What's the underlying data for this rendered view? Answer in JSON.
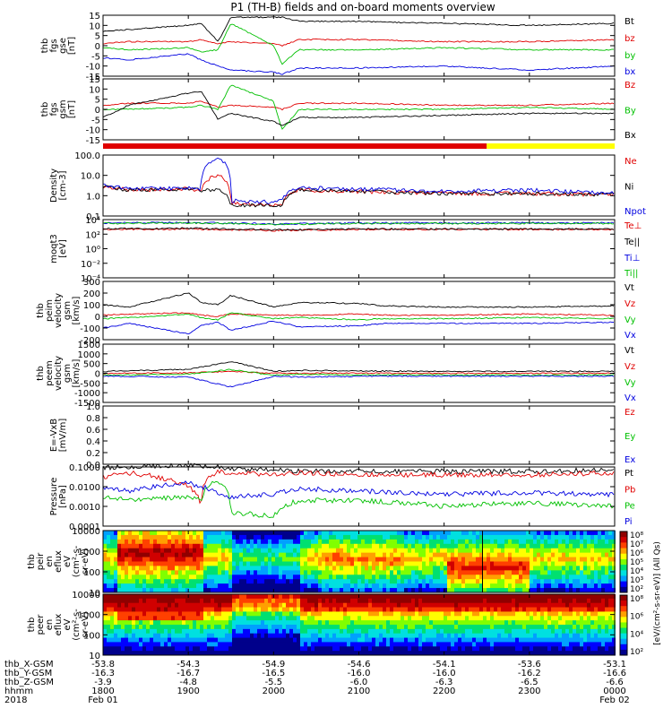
{
  "title": "P1 (TH-B) fields and on-board moments overview",
  "colors": {
    "black": "#000000",
    "red": "#e00000",
    "green": "#00c000",
    "blue": "#0000e0",
    "yellow": "#ffff00"
  },
  "chart_data": [
    {
      "type": "line",
      "panel": "fgs_gse",
      "ylabel": [
        "thb",
        "fgs",
        "gse",
        "[nT]"
      ],
      "ylim": [
        -15,
        15
      ],
      "ticks": [
        "15",
        "10",
        "5",
        "0",
        "-5",
        "-10",
        "-15"
      ],
      "x": [
        1800,
        1830,
        1900,
        1915,
        1935,
        1950,
        2000,
        2010,
        2030,
        2100,
        2200,
        2300,
        2400
      ],
      "series": [
        {
          "name": "Bt",
          "color": "black",
          "values": [
            7,
            8,
            10,
            11,
            2,
            14,
            14,
            14,
            12,
            12,
            11,
            10,
            11
          ]
        },
        {
          "name": "bz",
          "color": "red",
          "values": [
            1,
            2,
            2,
            3,
            1,
            2,
            1,
            0,
            3,
            3,
            2,
            2,
            3
          ]
        },
        {
          "name": "by",
          "color": "green",
          "values": [
            -1,
            -2,
            -1,
            -3,
            -2,
            11,
            0,
            -9,
            -2,
            -2,
            -1,
            -2,
            -2
          ]
        },
        {
          "name": "bx",
          "color": "blue",
          "values": [
            -6,
            -7,
            -4,
            -7,
            -10,
            -12,
            -13,
            -14,
            -11,
            -11,
            -10,
            -12,
            -10
          ]
        }
      ]
    },
    {
      "type": "line",
      "panel": "fgs_gsm",
      "ylabel": [
        "thb",
        "fgs",
        "gsm",
        "[nT]"
      ],
      "ylim": [
        -15,
        15
      ],
      "ticks": [
        "15",
        "10",
        "5",
        "0",
        "-5",
        "-10",
        "-15"
      ],
      "x": [
        1800,
        1830,
        1900,
        1915,
        1935,
        1950,
        2000,
        2010,
        2030,
        2100,
        2200,
        2300,
        2400
      ],
      "series": [
        {
          "name": "Bz",
          "color": "red",
          "values": [
            2,
            3,
            3,
            4,
            1,
            2,
            1,
            0,
            3,
            3,
            2,
            2,
            3
          ]
        },
        {
          "name": "By",
          "color": "green",
          "values": [
            0,
            0,
            1,
            2,
            0,
            12,
            4,
            -10,
            0,
            0,
            0,
            1,
            0
          ]
        },
        {
          "name": "Bx",
          "color": "black",
          "values": [
            -4,
            2,
            8,
            9,
            -5,
            -2,
            -6,
            -8,
            -4,
            -4,
            -3,
            -2,
            -2
          ]
        }
      ]
    },
    {
      "type": "line",
      "panel": "density",
      "ylabel": [
        "Density",
        "[cm-3]"
      ],
      "scale": "log",
      "ylim": [
        0.01,
        100
      ],
      "ticks": [
        "100.0",
        "10.0",
        "1.0",
        "0.1"
      ],
      "x": [
        1800,
        1830,
        1900,
        1915,
        1935,
        1950,
        2000,
        2010,
        2030,
        2100,
        2200,
        2300,
        2400
      ],
      "series": [
        {
          "name": "Ne",
          "color": "red",
          "values": [
            0.8,
            0.5,
            0.6,
            0.5,
            5,
            0.07,
            0.05,
            0.06,
            0.5,
            0.4,
            0.3,
            0.3,
            0.25
          ]
        },
        {
          "name": "Ni",
          "color": "black",
          "values": [
            0.8,
            0.5,
            0.6,
            0.5,
            0.5,
            0.05,
            0.05,
            0.05,
            0.5,
            0.4,
            0.3,
            0.3,
            0.25
          ]
        },
        {
          "name": "Npot",
          "color": "blue",
          "values": [
            1.0,
            0.6,
            0.7,
            0.6,
            60,
            0.1,
            0.08,
            0.1,
            0.7,
            0.6,
            0.4,
            0.5,
            0.3
          ]
        }
      ]
    },
    {
      "type": "line",
      "panel": "temperature",
      "ylabel": [
        "moqt3",
        "[eV]"
      ],
      "scale": "log",
      "ylim": [
        1e-05,
        10000
      ],
      "ticks": [
        "10⁴",
        "10²",
        "10⁰",
        "10⁻²",
        "10⁻⁴"
      ],
      "x": [
        1800,
        1900,
        2000,
        2100,
        2200,
        2300,
        2400
      ],
      "series": [
        {
          "name": "Te⊥",
          "color": "red",
          "values": [
            300,
            350,
            200,
            300,
            300,
            300,
            300
          ]
        },
        {
          "name": "Te||",
          "color": "black",
          "values": [
            400,
            450,
            250,
            350,
            350,
            350,
            350
          ]
        },
        {
          "name": "Ti⊥",
          "color": "blue",
          "values": [
            3000,
            3500,
            2000,
            3000,
            3000,
            3000,
            3000
          ]
        },
        {
          "name": "Ti||",
          "color": "green",
          "values": [
            2500,
            3000,
            1800,
            2500,
            2500,
            2500,
            2500
          ]
        }
      ]
    },
    {
      "type": "line",
      "panel": "peim_velocity",
      "ylabel": [
        "thb",
        "peim",
        "velocity",
        "gsm",
        "[km/s]"
      ],
      "ylim": [
        -200,
        300
      ],
      "ticks": [
        "300",
        "200",
        "100",
        "0",
        "-100",
        "-200"
      ],
      "x": [
        1800,
        1830,
        1900,
        1915,
        1935,
        1950,
        2000,
        2030,
        2100,
        2130,
        2200,
        2300,
        2400
      ],
      "series": [
        {
          "name": "Vt",
          "color": "black",
          "values": [
            100,
            80,
            200,
            120,
            100,
            180,
            80,
            120,
            110,
            90,
            80,
            80,
            90
          ]
        },
        {
          "name": "Vz",
          "color": "red",
          "values": [
            10,
            20,
            30,
            10,
            0,
            20,
            10,
            10,
            20,
            10,
            10,
            20,
            10
          ]
        },
        {
          "name": "Vy",
          "color": "green",
          "values": [
            -20,
            -10,
            20,
            -10,
            -30,
            30,
            -20,
            -10,
            -30,
            -20,
            -20,
            -10,
            -20
          ]
        },
        {
          "name": "Vx",
          "color": "blue",
          "values": [
            -100,
            -60,
            -150,
            -80,
            -50,
            -120,
            -40,
            -90,
            -80,
            -60,
            -60,
            -60,
            -50
          ]
        }
      ]
    },
    {
      "type": "line",
      "panel": "peem_velocity",
      "ylabel": [
        "thb",
        "peem",
        "velocity",
        "gsm",
        "[km/s]"
      ],
      "ylim": [
        -1500,
        1500
      ],
      "ticks": [
        "1500",
        "1000",
        "500",
        "0",
        "-500",
        "-1000",
        "-1500"
      ],
      "x": [
        1800,
        1900,
        1950,
        2000,
        2030,
        2100,
        2200,
        2300,
        2400
      ],
      "series": [
        {
          "name": "Vt",
          "color": "black",
          "values": [
            100,
            200,
            600,
            100,
            150,
            120,
            100,
            100,
            100
          ]
        },
        {
          "name": "Vz",
          "color": "red",
          "values": [
            0,
            20,
            100,
            0,
            0,
            10,
            0,
            0,
            0
          ]
        },
        {
          "name": "Vy",
          "color": "green",
          "values": [
            -100,
            -50,
            200,
            -100,
            -50,
            -80,
            -80,
            -100,
            -80
          ]
        },
        {
          "name": "Vx",
          "color": "blue",
          "values": [
            -150,
            -200,
            -700,
            -150,
            -200,
            -150,
            -150,
            -150,
            -150
          ]
        }
      ]
    },
    {
      "type": "line",
      "panel": "efield",
      "ylabel": [
        "E=-VxB",
        "[mV/m]"
      ],
      "ylim": [
        0,
        1
      ],
      "ticks": [
        "1.0",
        "0.8",
        "0.6",
        "0.4",
        "0.2",
        "0.0"
      ],
      "series": [
        {
          "name": "Ez",
          "color": "red",
          "values": []
        },
        {
          "name": "Ey",
          "color": "green",
          "values": []
        },
        {
          "name": "Ex",
          "color": "blue",
          "values": []
        }
      ]
    },
    {
      "type": "line",
      "panel": "pressure",
      "ylabel": [
        "Pressure",
        "[nPa]"
      ],
      "scale": "log",
      "ylim": [
        0.0001,
        0.1
      ],
      "ticks": [
        "0.1000",
        "0.0100",
        "0.0010",
        "0.0001"
      ],
      "x": [
        1800,
        1830,
        1900,
        1915,
        1935,
        1950,
        2000,
        2030,
        2100,
        2200,
        2300,
        2400
      ],
      "series": [
        {
          "name": "Pt",
          "color": "black",
          "values": [
            0.09,
            0.1,
            0.12,
            0.11,
            0.1,
            0.08,
            0.07,
            0.06,
            0.06,
            0.06,
            0.06,
            0.07
          ]
        },
        {
          "name": "Pb",
          "color": "red",
          "values": [
            0.03,
            0.05,
            0.01,
            0.001,
            0.06,
            0.05,
            0.04,
            0.05,
            0.04,
            0.04,
            0.04,
            0.05
          ]
        },
        {
          "name": "Pe",
          "color": "green",
          "values": [
            0.003,
            0.002,
            0.003,
            0.002,
            0.02,
            0.0005,
            0.0003,
            0.002,
            0.002,
            0.001,
            0.0015,
            0.001
          ]
        },
        {
          "name": "Pi",
          "color": "blue",
          "values": [
            0.01,
            0.006,
            0.015,
            0.01,
            0.005,
            0.003,
            0.004,
            0.008,
            0.006,
            0.004,
            0.005,
            0.004
          ]
        }
      ]
    },
    {
      "type": "heatmap",
      "panel": "peir_spectrogram",
      "ylabel": [
        "thb",
        "peir",
        "en",
        "eflux",
        "eV",
        "(cm²-s-",
        "sr-eV)"
      ],
      "scale": "log",
      "ylim": [
        5,
        30000
      ],
      "ticks": [
        "10000",
        "1000",
        "100",
        "10"
      ]
    },
    {
      "type": "heatmap",
      "panel": "peer_spectrogram",
      "ylabel": [
        "thb",
        "peer",
        "en",
        "eflux",
        "eV",
        "(cm²-s-",
        "sr-eV)"
      ],
      "scale": "log",
      "ylim": [
        5,
        30000
      ],
      "ticks": [
        "10000",
        "1000",
        "100",
        "10"
      ]
    }
  ],
  "colorbar": {
    "label": "[eV/(cm²-s-sr-eV)] (All Qs)",
    "ticks_top": [
      "10⁸",
      "10⁷",
      "10⁶",
      "10⁵",
      "10⁴",
      "10³",
      "10²"
    ],
    "ticks_bottom": [
      "10⁸",
      "10⁶",
      "10⁴",
      "10²"
    ]
  },
  "xaxis": {
    "rows": [
      {
        "label": "thb_X-GSM",
        "values": [
          "-53.8",
          "-54.3",
          "-54.9",
          "-54.6",
          "-54.1",
          "-53.6",
          "-53.1"
        ]
      },
      {
        "label": "thb_Y-GSM",
        "values": [
          "-16.3",
          "-16.7",
          "-16.5",
          "-16.0",
          "-16.0",
          "-16.2",
          "-16.6"
        ]
      },
      {
        "label": "thb_Z-GSM",
        "values": [
          "-3.9",
          "-4.8",
          "-5.5",
          "-6.0",
          "-6.3",
          "-6.5",
          "-6.6"
        ]
      },
      {
        "label": "hhmm",
        "values": [
          "1800",
          "1900",
          "2000",
          "2100",
          "2200",
          "2300",
          "0000"
        ]
      }
    ],
    "year": "2018",
    "dates": [
      {
        "text": "Feb 01",
        "at": 0
      },
      {
        "text": "Feb 02",
        "at": 6
      }
    ]
  }
}
